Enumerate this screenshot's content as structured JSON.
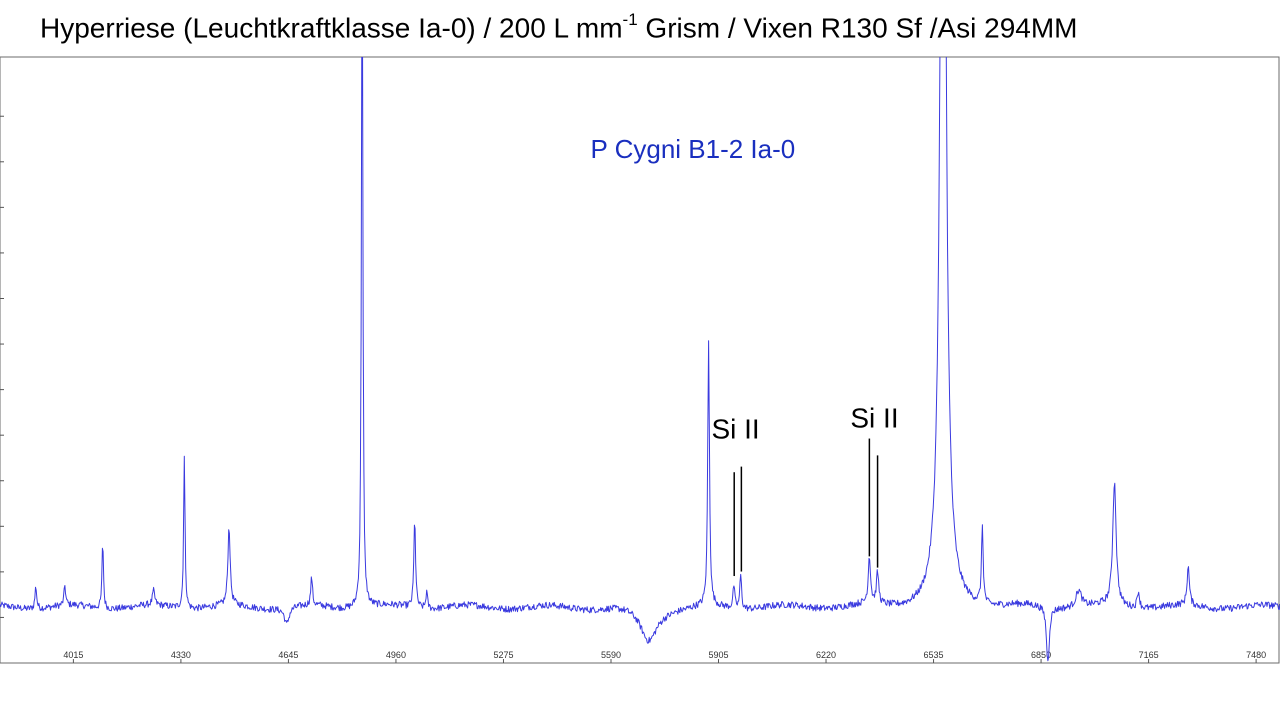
{
  "title": {
    "prefix": "Hyperriese (Leuchtkraftklasse Ia-0) / 200 L mm",
    "superscript": "-1",
    "suffix": " Grism / Vixen R130 Sf /Asi 294MM"
  },
  "colors": {
    "line": "#3a3adf",
    "star_label": "#1a2fbf",
    "axis": "#555555",
    "text": "#000000"
  },
  "chart_data": {
    "type": "line",
    "title": "Hyperriese (Leuchtkraftklasse Ia-0) / 200 L mm-1 Grism / Vixen R130 Sf /Asi 294MM",
    "xlabel": "",
    "ylabel": "",
    "xlim": [
      3800,
      7550
    ],
    "ylim": [
      0,
      1.08
    ],
    "x_ticks": [
      4015,
      4330,
      4645,
      4960,
      5275,
      5590,
      5905,
      6220,
      6535,
      6850,
      7165,
      7480
    ],
    "y_tick_labels_shown": false,
    "grid": false,
    "legend": "none",
    "continuum": 0.1,
    "noise_amplitude": 0.006,
    "features": [
      {
        "x": 3905,
        "h": 0.04,
        "w": 3,
        "label": ""
      },
      {
        "x": 3990,
        "h": 0.035,
        "w": 3,
        "label": ""
      },
      {
        "x": 4101,
        "h": 0.12,
        "w": 2.5,
        "label": ""
      },
      {
        "x": 4250,
        "h": 0.025,
        "w": 4,
        "label": ""
      },
      {
        "x": 4340,
        "h": 0.27,
        "w": 2.5,
        "label": ""
      },
      {
        "x": 4471,
        "h": 0.14,
        "w": 4,
        "label": ""
      },
      {
        "x": 4640,
        "h": -0.03,
        "w": 8,
        "label": ""
      },
      {
        "x": 4713,
        "h": 0.05,
        "w": 3,
        "label": ""
      },
      {
        "x": 4861,
        "h": 1.2,
        "w": 2.5,
        "label": ""
      },
      {
        "x": 5015,
        "h": 0.16,
        "w": 3,
        "label": ""
      },
      {
        "x": 5050,
        "h": 0.03,
        "w": 3,
        "label": ""
      },
      {
        "x": 5700,
        "h": -0.06,
        "w": 30,
        "label": ""
      },
      {
        "x": 5876,
        "h": 0.47,
        "w": 3,
        "label": ""
      },
      {
        "x": 5950,
        "h": 0.04,
        "w": 3,
        "label": "Si II"
      },
      {
        "x": 5970,
        "h": 0.06,
        "w": 3,
        "label": "Si II"
      },
      {
        "x": 6347,
        "h": 0.085,
        "w": 4,
        "label": "Si II"
      },
      {
        "x": 6371,
        "h": 0.055,
        "w": 4,
        "label": "Si II"
      },
      {
        "x": 6563,
        "h": 2.0,
        "w": 9,
        "label": ""
      },
      {
        "x": 6678,
        "h": 0.14,
        "w": 3,
        "label": ""
      },
      {
        "x": 6870,
        "h": -0.1,
        "w": 5,
        "label": ""
      },
      {
        "x": 6960,
        "h": 0.03,
        "w": 10,
        "label": ""
      },
      {
        "x": 7065,
        "h": 0.22,
        "w": 6,
        "label": ""
      },
      {
        "x": 7135,
        "h": 0.03,
        "w": 4,
        "label": ""
      },
      {
        "x": 7281,
        "h": 0.07,
        "w": 4,
        "label": ""
      }
    ],
    "annotations": [
      {
        "text": "P Cygni B1-2 Ia-0",
        "x": 5530,
        "y": 0.9,
        "color": "#1a2fbf"
      },
      {
        "text": "Si II",
        "x": 5955,
        "y": 0.4,
        "color": "#000000",
        "marker_lines": [
          {
            "x": 5951,
            "y_top": 0.34,
            "y_bottom": 0.155
          },
          {
            "x": 5972,
            "y_top": 0.35,
            "y_bottom": 0.163
          }
        ]
      },
      {
        "text": "Si II",
        "x": 6362,
        "y": 0.42,
        "color": "#000000",
        "marker_lines": [
          {
            "x": 6347,
            "y_top": 0.4,
            "y_bottom": 0.19
          },
          {
            "x": 6371,
            "y_top": 0.37,
            "y_bottom": 0.17
          }
        ]
      }
    ]
  }
}
